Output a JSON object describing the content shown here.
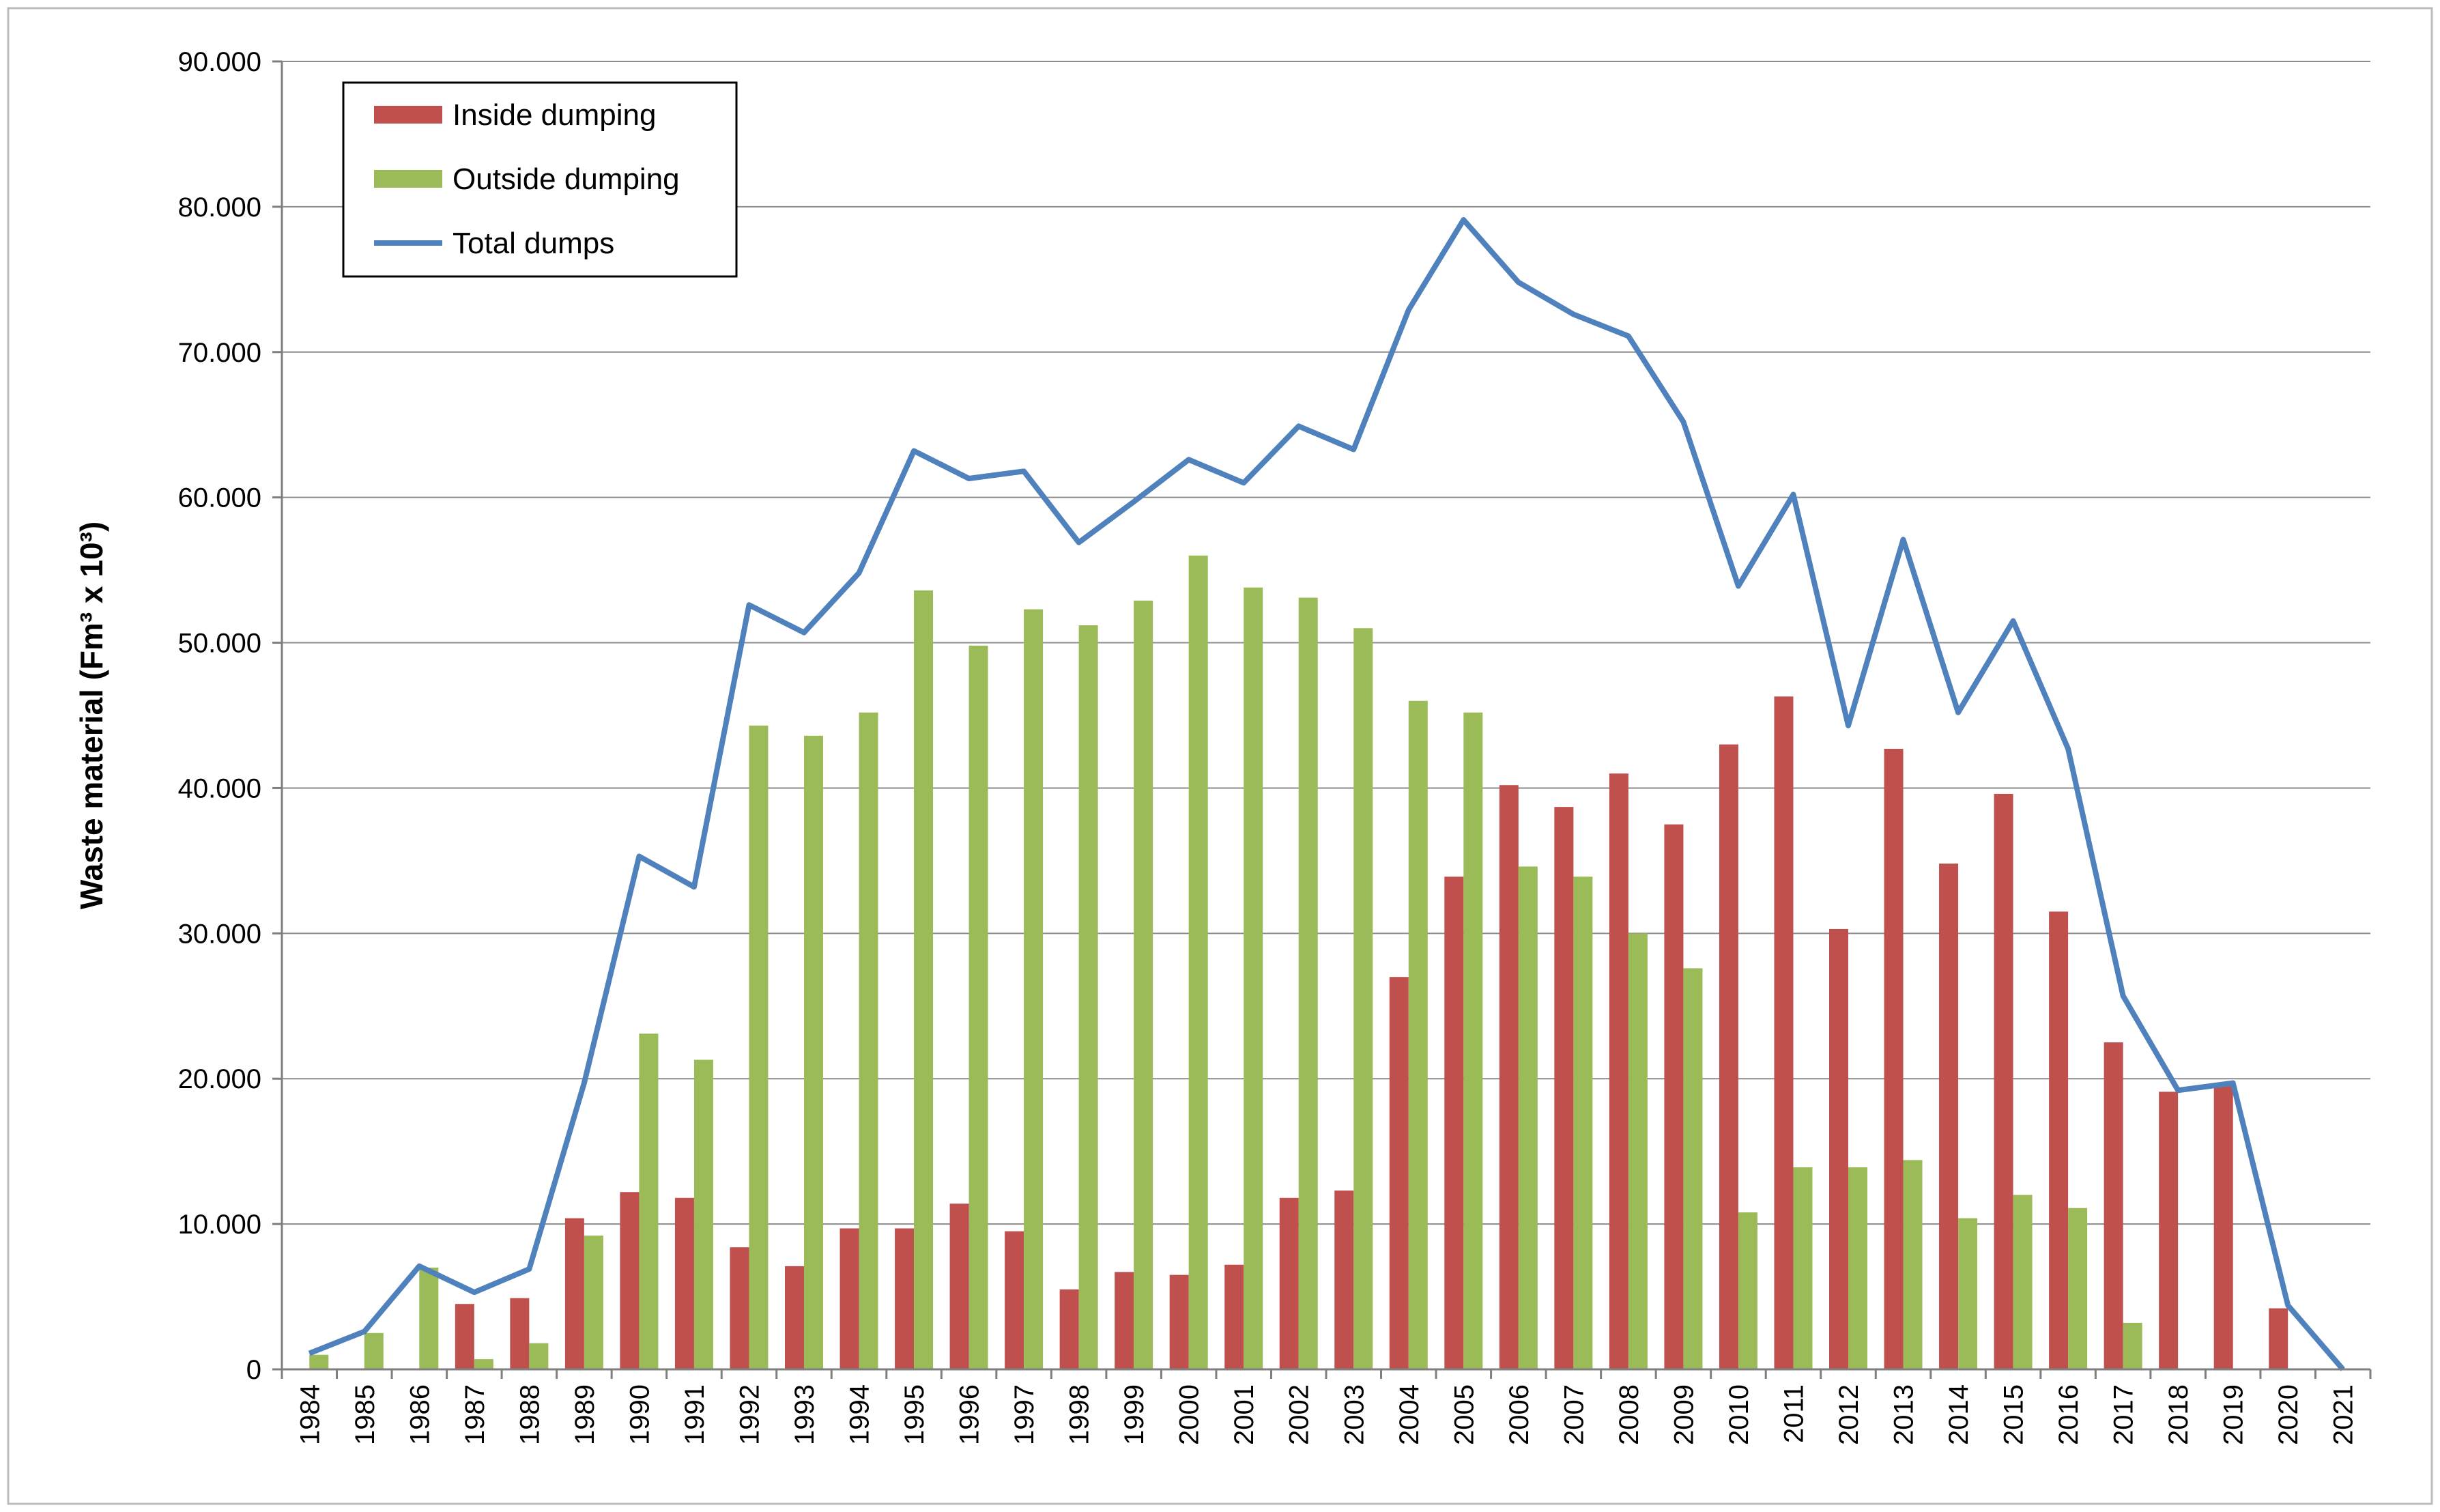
{
  "chart_data": {
    "type": "bar+line",
    "title": "",
    "xlabel": "",
    "ylabel": "Waste material (Fm³ x 10³)",
    "ylim": [
      0,
      90000
    ],
    "yticks": [
      0,
      10000,
      20000,
      30000,
      40000,
      50000,
      60000,
      70000,
      80000,
      90000
    ],
    "ytick_labels": [
      "0",
      "10.000",
      "20.000",
      "30.000",
      "40.000",
      "50.000",
      "60.000",
      "70.000",
      "80.000",
      "90.000"
    ],
    "grid": true,
    "legend_position": "top-left",
    "categories": [
      "1984",
      "1985",
      "1986",
      "1987",
      "1988",
      "1989",
      "1990",
      "1991",
      "1992",
      "1993",
      "1994",
      "1995",
      "1996",
      "1997",
      "1998",
      "1999",
      "2000",
      "2001",
      "2002",
      "2003",
      "2004",
      "2005",
      "2006",
      "2007",
      "2008",
      "2009",
      "2010",
      "2011",
      "2012",
      "2013",
      "2014",
      "2015",
      "2016",
      "2017",
      "2018",
      "2019",
      "2020",
      "2021"
    ],
    "series": [
      {
        "name": "Inside dumping",
        "kind": "bar",
        "color": "#c0504d",
        "values": [
          0,
          0,
          0,
          4500,
          4900,
          10400,
          12200,
          11800,
          8400,
          7100,
          9700,
          9700,
          11400,
          9500,
          5500,
          6700,
          6500,
          7200,
          11800,
          12300,
          27000,
          33900,
          40200,
          38700,
          41000,
          37500,
          43000,
          46300,
          30300,
          42700,
          34800,
          39600,
          31500,
          22500,
          19100,
          19600,
          4200,
          0
        ]
      },
      {
        "name": "Outside dumping",
        "kind": "bar",
        "color": "#9bbb59",
        "values": [
          1000,
          2500,
          7000,
          700,
          1800,
          9200,
          23100,
          21300,
          44300,
          43600,
          45200,
          53600,
          49800,
          52300,
          51200,
          52900,
          56000,
          53800,
          53100,
          51000,
          46000,
          45200,
          34600,
          33900,
          30000,
          27600,
          10800,
          13900,
          13900,
          14400,
          10400,
          12000,
          11100,
          3200,
          0,
          0,
          0,
          0
        ]
      },
      {
        "name": "Total dumps",
        "kind": "line",
        "color": "#4f81bd",
        "values": [
          1100,
          2600,
          7100,
          5300,
          6900,
          19700,
          35300,
          33200,
          52600,
          50700,
          54800,
          63200,
          61300,
          61800,
          56900,
          59700,
          62600,
          61000,
          64900,
          63300,
          72900,
          79100,
          74800,
          72600,
          71100,
          65200,
          53900,
          60200,
          44300,
          57100,
          45200,
          51500,
          42700,
          25700,
          19200,
          19700,
          4400,
          0
        ]
      }
    ]
  }
}
